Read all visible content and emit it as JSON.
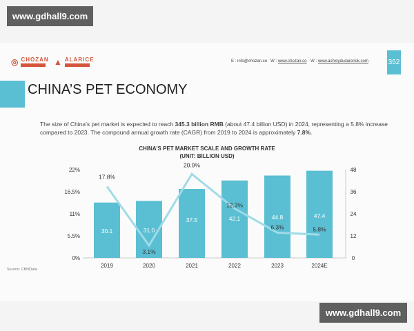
{
  "watermark": {
    "top": "www.gdhall9.com",
    "bottom": "www.gdhall9.com"
  },
  "header": {
    "logos": [
      "CHOZAN",
      "ALARICE"
    ],
    "email": "E : info@chozan.co",
    "web1_label": "W :",
    "web1": "www.chozan.co",
    "web2_label": "W :",
    "web2": "www.ashleydudarenok.com",
    "page_number": "352"
  },
  "title": "CHINA’S PET ECONOMY",
  "description": {
    "p1": "The size of China’s pet market is expected to reach ",
    "b1": "345.3 billion RMB",
    "p2": " (about 47.4 billion USD) in 2024, representing a 5.8% increase compared to 2023. The compound annual growth rate (CAGR) from 2019 to 2024 is approximately ",
    "b2": "7.8%",
    "p3": "."
  },
  "source": "Source: CBNData",
  "colors": {
    "accent": "#5bbfd3",
    "line": "#9fdbe6",
    "logo": "#d4553a"
  },
  "chart_data": {
    "type": "bar+line",
    "title": "CHINA'S PET MARKET SCALE AND GROWTH RATE",
    "subtitle": "(UNIT: BILLION USD)",
    "categories": [
      "2019",
      "2020",
      "2021",
      "2022",
      "2023",
      "2024E"
    ],
    "bars": {
      "values": [
        30.1,
        31.0,
        37.5,
        42.1,
        44.8,
        47.4
      ],
      "axis": "right",
      "ylim": [
        0,
        48
      ],
      "ticks": [
        "0",
        "12",
        "24",
        "36",
        "48"
      ]
    },
    "line": {
      "values": [
        17.8,
        3.1,
        20.9,
        12.3,
        6.3,
        5.8
      ],
      "labels": [
        "17.8%",
        "3.1%",
        "20.9%",
        "12.3%",
        "6.3%",
        "5.8%"
      ],
      "axis": "left",
      "ylim": [
        0,
        22
      ],
      "ticks": [
        "0%",
        "5.5%",
        "11%",
        "16.5%",
        "22%"
      ]
    },
    "grid": false
  }
}
